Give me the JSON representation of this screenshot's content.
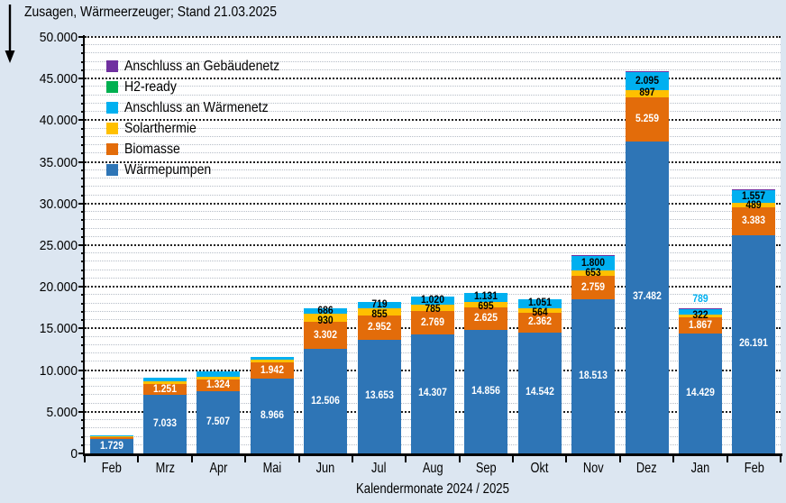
{
  "page": {
    "title": "Zusagen, Wärmeerzeuger; Stand 21.03.2025"
  },
  "icons": [
    {
      "name": "down-arrow-icon"
    }
  ],
  "colors": {
    "background": "#DCE6F1",
    "plot_background": "#FFFFFF",
    "axis": "#000000",
    "major_grid": "#1F1F1F",
    "minor_grid": "#B6BDC7"
  },
  "chart_data": {
    "type": "bar",
    "stacked": true,
    "title": "Zusagen, Wärmeerzeuger; Stand 21.03.2025",
    "xlabel": "Kalendermonate 2024 / 2025",
    "ylabel": "",
    "ylim": [
      0,
      50000
    ],
    "ytick_step": 5000,
    "ytick_minor_step": 1000,
    "ytick_labels": [
      "0",
      "5.000",
      "10.000",
      "15.000",
      "20.000",
      "25.000",
      "30.000",
      "35.000",
      "40.000",
      "45.000",
      "50.000"
    ],
    "grid": "major dotted black, minor light gray",
    "legend_position": "top-left inside plot",
    "categories": [
      "Feb",
      "Mrz",
      "Apr",
      "Mai",
      "Jun",
      "Jul",
      "Aug",
      "Sep",
      "Okt",
      "Nov",
      "Dez",
      "Jan",
      "Feb"
    ],
    "legend": [
      {
        "label": "Anschluss an Gebäudenetz",
        "color": "#7030A0"
      },
      {
        "label": "H2-ready",
        "color": "#00B050"
      },
      {
        "label": "Anschluss an Wärmenetz",
        "color": "#00B0F0"
      },
      {
        "label": "Solarthermie",
        "color": "#FFC000"
      },
      {
        "label": "Biomasse",
        "color": "#E36C0A"
      },
      {
        "label": "Wärmepumpen",
        "color": "#2E75B6"
      }
    ],
    "series": [
      {
        "name": "Wärmepumpen",
        "color": "#2E75B6",
        "label_color": "#FFFFFF",
        "values": [
          1729,
          7033,
          7507,
          8966,
          12506,
          13653,
          14307,
          14856,
          14542,
          18513,
          37482,
          14429,
          26191
        ],
        "labels": [
          "1.729",
          "7.033",
          "7.507",
          "8.966",
          "12.506",
          "13.653",
          "14.307",
          "14.856",
          "14.542",
          "18.513",
          "37.482",
          "14.429",
          "26.191"
        ]
      },
      {
        "name": "Biomasse",
        "color": "#E36C0A",
        "label_color": "#FFFFFF",
        "values": [
          300,
          1251,
          1324,
          1942,
          3302,
          2952,
          2769,
          2625,
          2362,
          2759,
          5259,
          1867,
          3383
        ],
        "labels": [
          null,
          "1.251",
          "1.324",
          "1.942",
          "3.302",
          "2.952",
          "2.769",
          "2.625",
          "2.362",
          "2.759",
          "5.259",
          "1.867",
          "3.383"
        ]
      },
      {
        "name": "Solarthermie",
        "color": "#FFC000",
        "label_color": "#000000",
        "values": [
          70,
          350,
          400,
          300,
          930,
          855,
          785,
          695,
          564,
          653,
          897,
          322,
          489
        ],
        "labels": [
          null,
          null,
          null,
          null,
          "930",
          "855",
          "785",
          "695",
          "564",
          "653",
          "897",
          "322",
          "489"
        ]
      },
      {
        "name": "Anschluss an Wärmenetz",
        "color": "#00B0F0",
        "label_color": "#000000",
        "values": [
          60,
          450,
          600,
          370,
          686,
          719,
          1020,
          1131,
          1051,
          1800,
          2095,
          789,
          1557
        ],
        "labels": [
          null,
          null,
          null,
          null,
          "686",
          "719",
          "1.020",
          "1.131",
          "1.051",
          "1.800",
          "2.095",
          null,
          "1.557"
        ],
        "outside_label": {
          "index": 11,
          "text": "789",
          "color": "#00B0F0"
        }
      },
      {
        "name": "H2-ready",
        "color": "#00B050",
        "label_color": "#000000",
        "values": [
          0,
          0,
          0,
          0,
          0,
          0,
          0,
          0,
          0,
          0,
          0,
          0,
          0
        ],
        "labels": [
          null,
          null,
          null,
          null,
          null,
          null,
          null,
          null,
          null,
          null,
          null,
          null,
          null
        ]
      },
      {
        "name": "Anschluss an Gebäudenetz",
        "color": "#7030A0",
        "label_color": "#FFFFFF",
        "values": [
          0,
          0,
          0,
          0,
          0,
          0,
          0,
          0,
          0,
          100,
          150,
          60,
          100
        ],
        "labels": [
          null,
          null,
          null,
          null,
          null,
          null,
          null,
          null,
          null,
          null,
          null,
          null,
          null
        ]
      }
    ]
  }
}
